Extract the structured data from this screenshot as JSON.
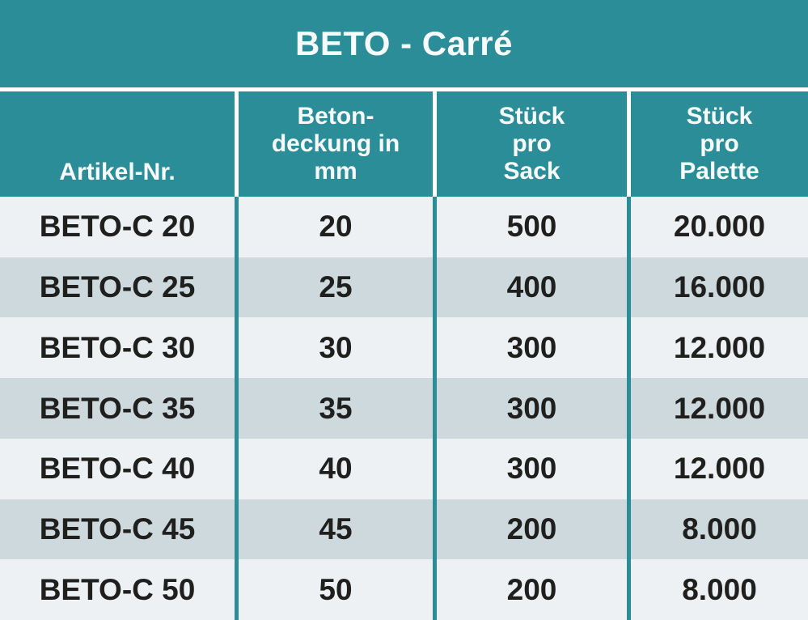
{
  "title": "BETO - Carré",
  "table": {
    "header": [
      "Artikel-Nr.",
      "Beton-\ndeckung in\nmm",
      "Stück\npro\nSack",
      "Stück\npro\nPalette"
    ],
    "rows": [
      [
        "BETO-C 20",
        "20",
        "500",
        "20.000"
      ],
      [
        "BETO-C 25",
        "25",
        "400",
        "16.000"
      ],
      [
        "BETO-C 30",
        "30",
        "300",
        "12.000"
      ],
      [
        "BETO-C 35",
        "35",
        "300",
        "12.000"
      ],
      [
        "BETO-C 40",
        "40",
        "300",
        "12.000"
      ],
      [
        "BETO-C 45",
        "45",
        "200",
        "8.000"
      ],
      [
        "BETO-C 50",
        "50",
        "200",
        "8.000"
      ]
    ]
  },
  "colors": {
    "teal": "#2a8d97",
    "row_light": "#edf1f3",
    "row_dark": "#cdd9dd",
    "header_text": "#f7fbfb",
    "body_text": "#1f1f1d",
    "divider_header": "#ffffff"
  }
}
